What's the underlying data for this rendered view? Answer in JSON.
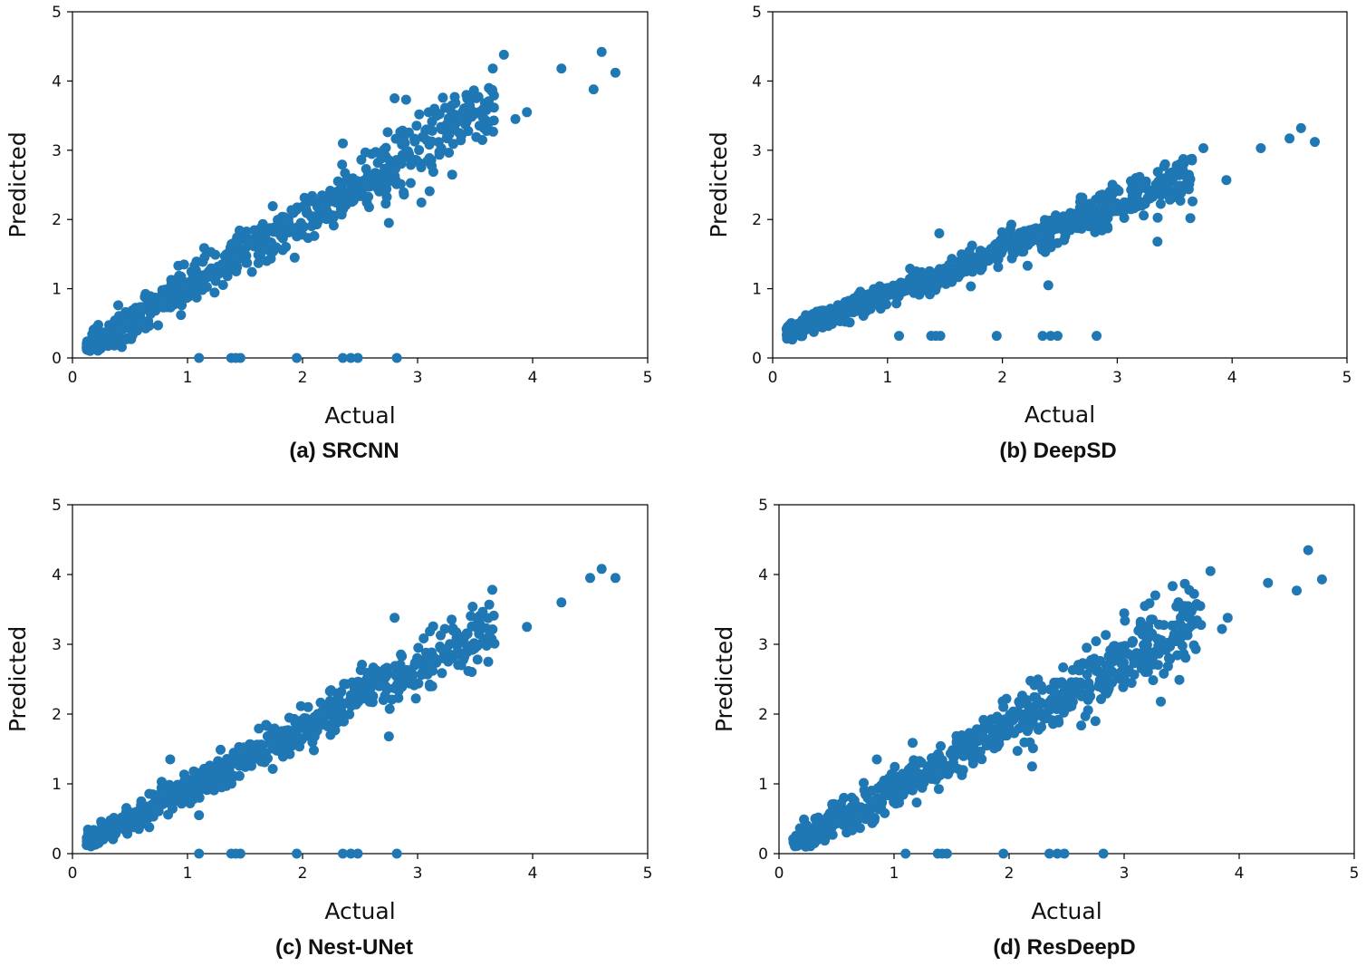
{
  "figure": {
    "marker_color": "#1f77b4",
    "axis_color": "#000000",
    "panels_shown": 4
  },
  "chart_data": [
    {
      "type": "scatter",
      "caption": "(a) SRCNN",
      "xlabel": "Actual",
      "ylabel": "Predicted",
      "xlim": [
        0,
        5
      ],
      "ylim": [
        0,
        5
      ],
      "xticks": [
        "0",
        "1",
        "2",
        "3",
        "4",
        "5"
      ],
      "yticks": [
        "0",
        "1",
        "2",
        "3",
        "4",
        "5"
      ],
      "trend": {
        "slope": 1.0,
        "intercept": 0.03,
        "spread": 0.18
      },
      "zero_points_x": [
        1.1,
        1.38,
        1.42,
        1.46,
        1.95,
        2.35,
        2.42,
        2.48,
        2.82
      ],
      "outliers": [
        [
          3.75,
          4.38
        ],
        [
          4.25,
          4.18
        ],
        [
          4.6,
          4.42
        ],
        [
          4.72,
          4.12
        ],
        [
          4.53,
          3.88
        ],
        [
          3.85,
          3.45
        ],
        [
          3.95,
          3.55
        ],
        [
          3.65,
          3.87
        ],
        [
          2.8,
          3.75
        ],
        [
          2.9,
          3.73
        ],
        [
          2.35,
          3.1
        ],
        [
          2.75,
          1.95
        ]
      ]
    },
    {
      "type": "scatter",
      "caption": "(b) DeepSD",
      "xlabel": "Actual",
      "ylabel": "Predicted",
      "xlim": [
        0,
        5
      ],
      "ylim": [
        0,
        5
      ],
      "xticks": [
        "0",
        "1",
        "2",
        "3",
        "4",
        "5"
      ],
      "yticks": [
        "0",
        "1",
        "2",
        "3",
        "4",
        "5"
      ],
      "trend": {
        "slope": 0.65,
        "intercept": 0.28,
        "spread": 0.12
      },
      "zero_points_x": [
        1.1,
        1.38,
        1.42,
        1.46,
        1.95,
        2.35,
        2.42,
        2.48,
        2.82
      ],
      "zero_points_y": 0.32,
      "outliers": [
        [
          4.25,
          3.03
        ],
        [
          4.5,
          3.17
        ],
        [
          4.6,
          3.32
        ],
        [
          4.72,
          3.12
        ],
        [
          3.75,
          3.03
        ],
        [
          3.95,
          2.57
        ],
        [
          1.45,
          1.8
        ],
        [
          2.4,
          1.05
        ],
        [
          3.35,
          1.68
        ]
      ]
    },
    {
      "type": "scatter",
      "caption": "(c) Nest-UNet",
      "xlabel": "Actual",
      "ylabel": "Predicted",
      "xlim": [
        0,
        5
      ],
      "ylim": [
        0,
        5
      ],
      "xticks": [
        "0",
        "1",
        "2",
        "3",
        "4",
        "5"
      ],
      "yticks": [
        "0",
        "1",
        "2",
        "3",
        "4",
        "5"
      ],
      "trend": {
        "slope": 0.88,
        "intercept": 0.05,
        "spread": 0.15
      },
      "zero_points_x": [
        1.1,
        1.38,
        1.42,
        1.46,
        1.95,
        2.35,
        2.42,
        2.48,
        2.82
      ],
      "outliers": [
        [
          4.25,
          3.6
        ],
        [
          4.5,
          3.95
        ],
        [
          4.6,
          4.08
        ],
        [
          4.72,
          3.95
        ],
        [
          3.65,
          3.78
        ],
        [
          3.95,
          3.25
        ],
        [
          2.8,
          3.38
        ],
        [
          2.75,
          1.68
        ],
        [
          1.1,
          0.55
        ],
        [
          0.85,
          1.35
        ]
      ]
    },
    {
      "type": "scatter",
      "caption": "(d) ResDeepD",
      "xlabel": "Actual",
      "ylabel": "Predicted",
      "xlim": [
        0,
        5
      ],
      "ylim": [
        0,
        5
      ],
      "xticks": [
        "0",
        "1",
        "2",
        "3",
        "4",
        "5"
      ],
      "yticks": [
        "0",
        "1",
        "2",
        "3",
        "4",
        "5"
      ],
      "trend": {
        "slope": 0.9,
        "intercept": 0.03,
        "spread": 0.2
      },
      "zero_points_x": [
        1.1,
        1.38,
        1.42,
        1.46,
        1.95,
        2.35,
        2.42,
        2.48,
        2.82
      ],
      "outliers": [
        [
          4.25,
          3.88
        ],
        [
          4.5,
          3.77
        ],
        [
          4.6,
          4.35
        ],
        [
          4.72,
          3.93
        ],
        [
          3.75,
          4.05
        ],
        [
          3.9,
          3.38
        ],
        [
          3.85,
          3.22
        ],
        [
          2.75,
          1.9
        ],
        [
          2.2,
          1.25
        ],
        [
          0.85,
          1.35
        ]
      ]
    }
  ]
}
